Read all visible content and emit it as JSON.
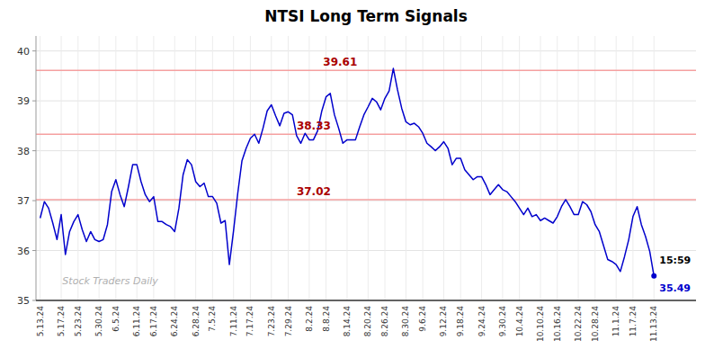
{
  "chart_data": {
    "type": "line",
    "title": "NTSI Long Term Signals",
    "watermark": "Stock Traders Daily",
    "color": "#0000cc",
    "grid": true,
    "ylim": [
      35.0,
      40.3
    ],
    "yticks": [
      35,
      36,
      37,
      38,
      39,
      40
    ],
    "hlines": {
      "values": [
        39.61,
        38.33,
        37.02
      ],
      "color": "#f5a0a0"
    },
    "last_price": 35.49,
    "last_time": "15:59",
    "categories": [
      "5.13.24",
      null,
      null,
      null,
      null,
      "5.17.24",
      null,
      null,
      null,
      "5.23.24",
      null,
      null,
      null,
      null,
      "5.30.24",
      null,
      null,
      null,
      "6.5.24",
      null,
      null,
      null,
      null,
      "6.11.24",
      null,
      null,
      null,
      "6.17.24",
      null,
      null,
      null,
      null,
      "6.24.24",
      null,
      null,
      null,
      null,
      "6.28.24",
      null,
      null,
      null,
      "7.5.24",
      null,
      null,
      null,
      null,
      "7.11.24",
      null,
      null,
      null,
      "7.17.24",
      null,
      null,
      null,
      null,
      "7.23.24",
      null,
      null,
      null,
      "7.29.24",
      null,
      null,
      null,
      null,
      "8.2.24",
      null,
      null,
      null,
      "8.8.24",
      null,
      null,
      null,
      null,
      "8.14.24",
      null,
      null,
      null,
      null,
      "8.20.24",
      null,
      null,
      null,
      "8.26.24",
      null,
      null,
      null,
      null,
      "8.30.24",
      null,
      null,
      null,
      "9.6.24",
      null,
      null,
      null,
      null,
      "9.12.24",
      null,
      null,
      null,
      "9.18.24",
      null,
      null,
      null,
      null,
      "9.24.24",
      null,
      null,
      null,
      null,
      "9.30.24",
      null,
      null,
      null,
      "10.4.24",
      null,
      null,
      null,
      null,
      "10.10.24",
      null,
      null,
      null,
      "10.16.24",
      null,
      null,
      null,
      null,
      "10.22.24",
      null,
      null,
      null,
      "10.28.24",
      null,
      null,
      null,
      null,
      "11.1.24",
      null,
      null,
      null,
      "11.7.24",
      null,
      null,
      null,
      null,
      "11.13.24"
    ],
    "values": [
      36.65,
      36.98,
      36.85,
      36.55,
      36.22,
      36.72,
      35.92,
      36.38,
      36.58,
      36.72,
      36.42,
      36.18,
      36.38,
      36.22,
      36.18,
      36.22,
      36.52,
      37.18,
      37.42,
      37.12,
      36.88,
      37.28,
      37.72,
      37.72,
      37.38,
      37.12,
      36.98,
      37.08,
      36.58,
      36.58,
      36.52,
      36.48,
      36.38,
      36.85,
      37.52,
      37.82,
      37.72,
      37.38,
      37.28,
      37.35,
      37.08,
      37.08,
      36.95,
      36.55,
      36.6,
      35.72,
      36.4,
      37.15,
      37.8,
      38.05,
      38.25,
      38.33,
      38.15,
      38.45,
      38.8,
      38.92,
      38.7,
      38.5,
      38.75,
      38.78,
      38.72,
      38.3,
      38.15,
      38.35,
      38.22,
      38.22,
      38.4,
      38.8,
      39.08,
      39.15,
      38.72,
      38.45,
      38.15,
      38.22,
      38.22,
      38.22,
      38.48,
      38.72,
      38.88,
      39.05,
      38.98,
      38.82,
      39.05,
      39.2,
      39.65,
      39.22,
      38.85,
      38.58,
      38.52,
      38.55,
      38.48,
      38.35,
      38.15,
      38.08,
      38.0,
      38.08,
      38.18,
      38.05,
      37.72,
      37.85,
      37.85,
      37.62,
      37.52,
      37.42,
      37.48,
      37.48,
      37.32,
      37.12,
      37.22,
      37.32,
      37.22,
      37.18,
      37.08,
      36.98,
      36.85,
      36.72,
      36.85,
      36.68,
      36.72,
      36.6,
      36.65,
      36.6,
      36.55,
      36.68,
      36.88,
      37.02,
      36.88,
      36.72,
      36.72,
      36.98,
      36.92,
      36.78,
      36.52,
      36.38,
      36.1,
      35.82,
      35.78,
      35.72,
      35.58,
      35.88,
      36.22,
      36.68,
      36.88,
      36.52,
      36.28,
      35.98,
      35.49
    ]
  }
}
